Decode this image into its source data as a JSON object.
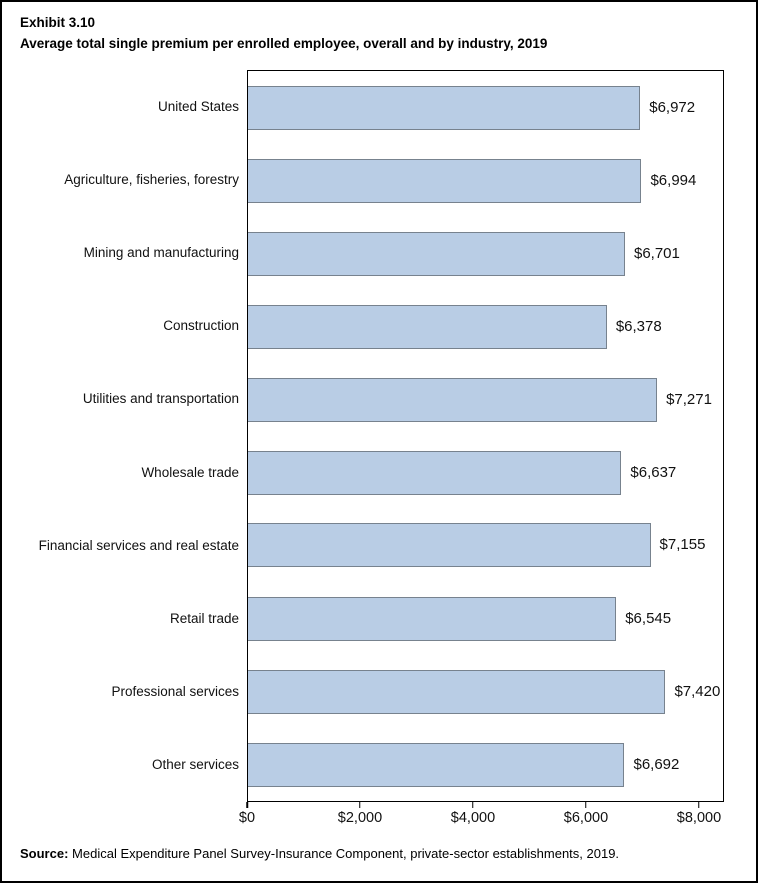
{
  "header": {
    "exhibit": "Exhibit 3.10",
    "title": "Average total single premium per enrolled employee, overall and by industry, 2019"
  },
  "chart_data": {
    "type": "bar",
    "orientation": "horizontal",
    "title": "Average total single premium per enrolled employee, overall and by industry, 2019",
    "xlabel": "",
    "ylabel": "",
    "categories": [
      "United States",
      "Agriculture, fisheries, forestry",
      "Mining and manufacturing",
      "Construction",
      "Utilities and transportation",
      "Wholesale trade",
      "Financial services and real estate",
      "Retail trade",
      "Professional services",
      "Other services"
    ],
    "values": [
      6972,
      6994,
      6701,
      6378,
      7271,
      6637,
      7155,
      6545,
      7420,
      6692
    ],
    "value_labels": [
      "$6,972",
      "$6,994",
      "$6,701",
      "$6,378",
      "$7,271",
      "$6,637",
      "$7,155",
      "$6,545",
      "$7,420",
      "$6,692"
    ],
    "x_ticks": [
      {
        "value": 0,
        "label": "$0"
      },
      {
        "value": 2000,
        "label": "$2,000"
      },
      {
        "value": 4000,
        "label": "$4,000"
      },
      {
        "value": 6000,
        "label": "$6,000"
      },
      {
        "value": 8000,
        "label": "$8,000"
      }
    ],
    "xlim": [
      0,
      8443
    ],
    "grid": false,
    "legend": false,
    "bar_color": "#B9CDE5",
    "bar_border_color": "#77828E"
  },
  "source": {
    "label": "Source:",
    "text": "Medical Expenditure Panel Survey-Insurance Component, private-sector establishments, 2019."
  }
}
